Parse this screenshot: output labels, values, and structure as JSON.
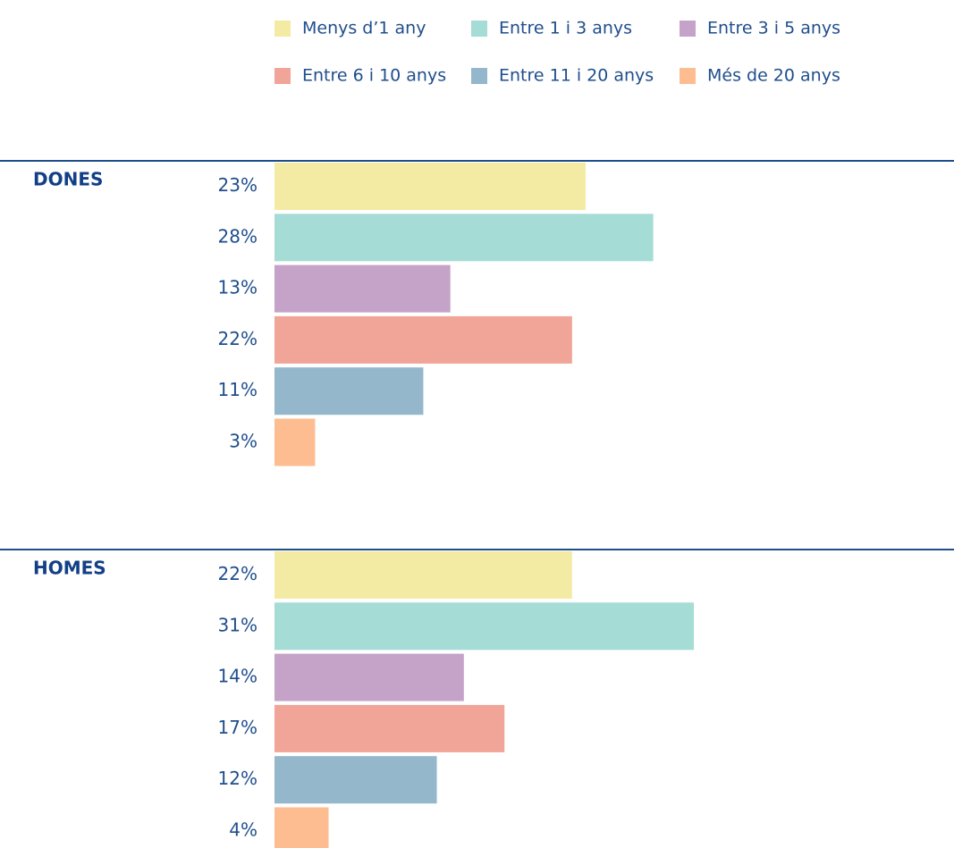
{
  "chart_data": {
    "type": "bar",
    "orientation": "horizontal",
    "categories": [
      "DONES",
      "HOMES"
    ],
    "series": [
      {
        "name": "Menys d’1 any",
        "color": "#f3eba3",
        "values": [
          23,
          22
        ],
        "value_labels": [
          "23%",
          "22%"
        ]
      },
      {
        "name": "Entre 1 i 3 anys",
        "color": "#a5dcd5",
        "values": [
          28,
          31
        ],
        "value_labels": [
          "28%",
          "31%"
        ]
      },
      {
        "name": "Entre 3 i 5 anys",
        "color": "#c5a3c8",
        "values": [
          13,
          14
        ],
        "value_labels": [
          "13%",
          "14%"
        ]
      },
      {
        "name": "Entre 6 i 10 anys",
        "color": "#f0a598",
        "values": [
          22,
          17
        ],
        "value_labels": [
          "22%",
          "17%"
        ]
      },
      {
        "name": "Entre 11 i 20 anys",
        "color": "#94b7cb",
        "values": [
          11,
          12
        ],
        "value_labels": [
          "11%",
          "12%"
        ]
      },
      {
        "name": "Més de 20 anys",
        "color": "#fdbd91",
        "values": [
          3,
          4
        ],
        "value_labels": [
          "3%",
          "4%"
        ]
      }
    ]
  }
}
